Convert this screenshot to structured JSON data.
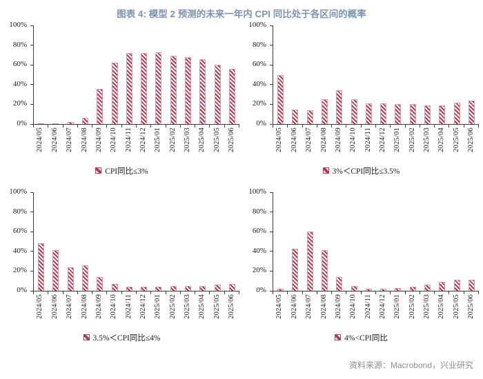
{
  "page": {
    "title": "图表 4: 模型 2 预测的未来一年内 CPI 同比处于各区间的概率",
    "source": "资料来源：Macrobond，兴业研究"
  },
  "colors": {
    "title_text": "#7E93AF",
    "bar_hatch": "#B23A52",
    "bar_border": "#D49AA8",
    "axis": "#3A3A3A",
    "source_text": "#8C8C8C"
  },
  "chart_data": [
    {
      "type": "bar",
      "legend": "CPI同比≤3%",
      "legend_position": "bottom",
      "grid": false,
      "ylim": [
        0,
        100
      ],
      "yticks": [
        "100%",
        "80%",
        "60%",
        "40%",
        "20%",
        "0%"
      ],
      "categories": [
        "2024/05",
        "2024/06",
        "2024/07",
        "2024/08",
        "2024/09",
        "2024/10",
        "2024/11",
        "2024/12",
        "2025/01",
        "2025/02",
        "2025/03",
        "2025/04",
        "2025/05",
        "2025/06"
      ],
      "values": [
        1,
        1,
        2,
        6,
        36,
        62,
        72,
        72,
        73,
        69,
        68,
        66,
        60,
        56
      ]
    },
    {
      "type": "bar",
      "legend": "3%＜CPI同比≤3.5%",
      "legend_position": "bottom",
      "grid": false,
      "ylim": [
        0,
        100
      ],
      "yticks": [
        "100%",
        "80%",
        "60%",
        "40%",
        "20%",
        "0%"
      ],
      "categories": [
        "2024/05",
        "2024/06",
        "2024/07",
        "2024/08",
        "2024/09",
        "2024/10",
        "2024/11",
        "2024/12",
        "2025/01",
        "2025/02",
        "2025/03",
        "2025/04",
        "2025/05",
        "2025/06"
      ],
      "values": [
        50,
        15,
        14,
        25,
        34,
        25,
        21,
        21,
        20,
        20,
        19,
        19,
        22,
        24
      ]
    },
    {
      "type": "bar",
      "legend": "3.5%＜CPI同比≤4%",
      "legend_position": "bottom",
      "grid": false,
      "ylim": [
        0,
        100
      ],
      "yticks": [
        "100%",
        "80%",
        "60%",
        "40%",
        "20%",
        "0%"
      ],
      "categories": [
        "2024/05",
        "2024/06",
        "2024/07",
        "2024/08",
        "2024/09",
        "2024/10",
        "2024/11",
        "2024/12",
        "2025/01",
        "2025/02",
        "2025/03",
        "2025/04",
        "2025/05",
        "2025/06"
      ],
      "values": [
        48,
        41,
        24,
        26,
        14,
        7,
        4,
        4,
        4,
        5,
        5,
        5,
        6,
        7
      ]
    },
    {
      "type": "bar",
      "legend": "4%<CPI同比",
      "legend_position": "bottom",
      "grid": false,
      "ylim": [
        0,
        100
      ],
      "yticks": [
        "100%",
        "80%",
        "60%",
        "40%",
        "20%",
        "0%"
      ],
      "categories": [
        "2024/05",
        "2024/06",
        "2024/07",
        "2024/08",
        "2024/09",
        "2024/10",
        "2024/11",
        "2024/12",
        "2025/01",
        "2025/02",
        "2025/03",
        "2025/04",
        "2025/05",
        "2025/06"
      ],
      "values": [
        2,
        43,
        60,
        41,
        14,
        5,
        2,
        2,
        3,
        4,
        6,
        9,
        11,
        11
      ]
    }
  ]
}
